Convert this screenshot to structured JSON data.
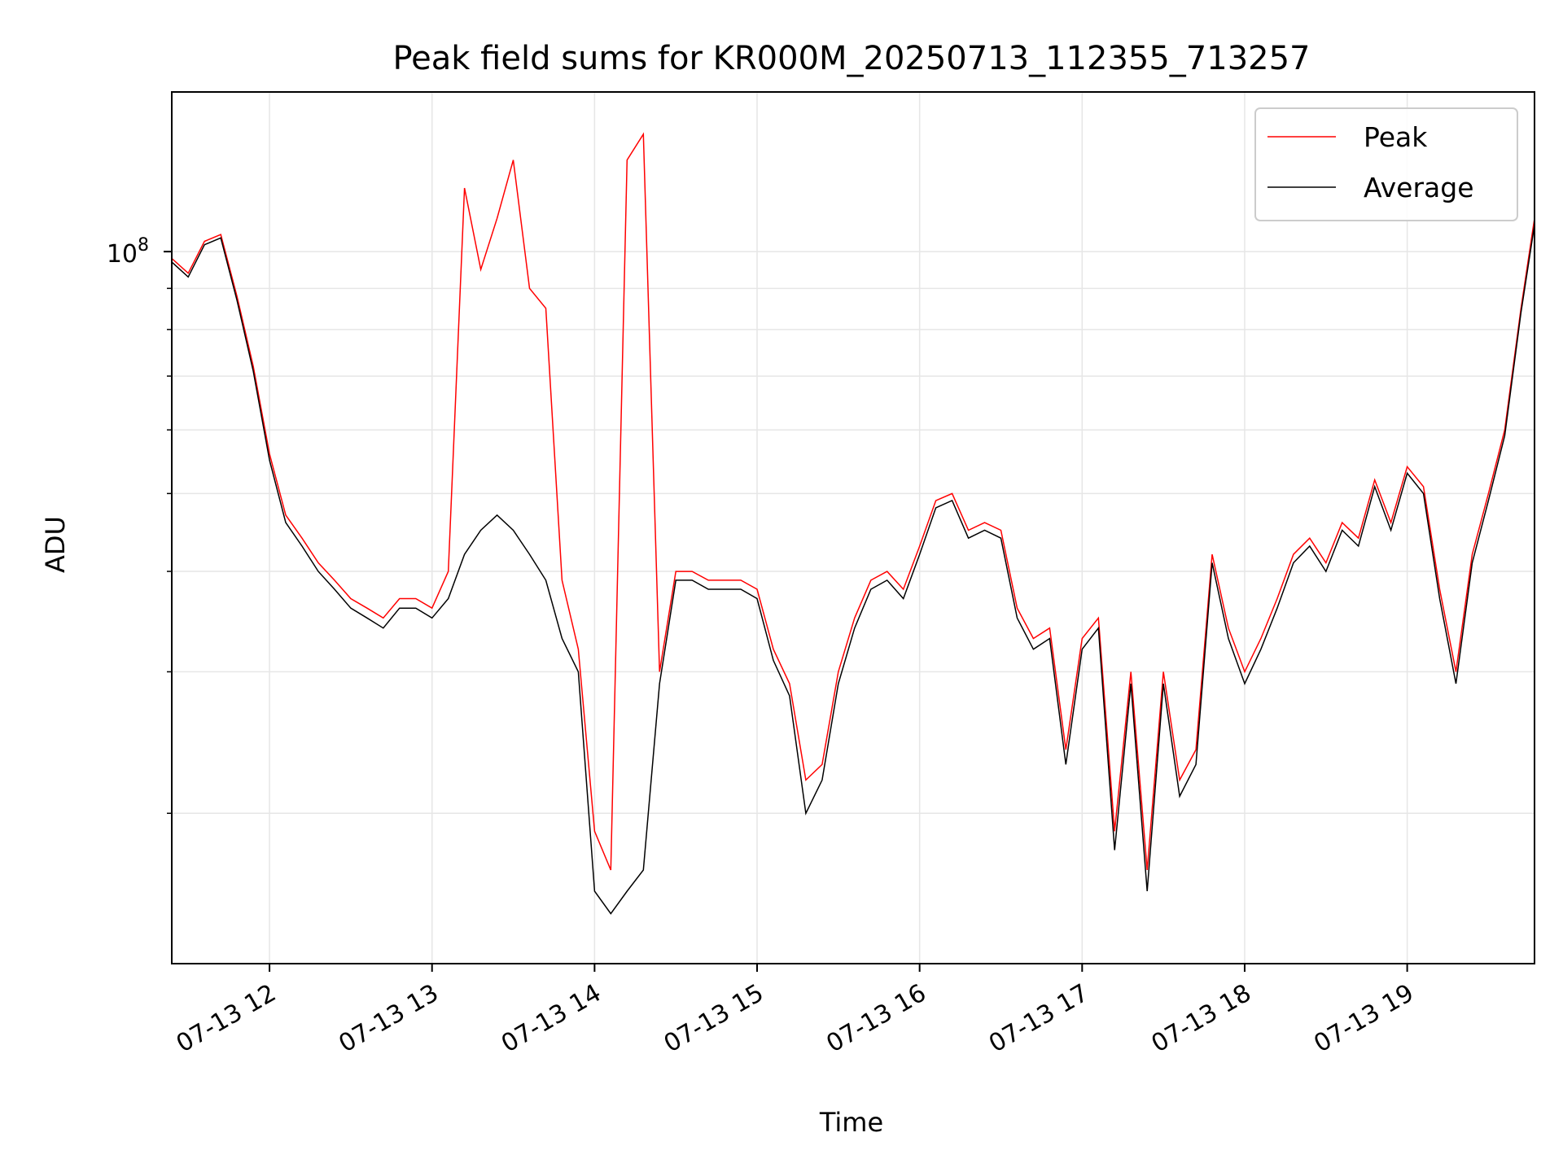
{
  "chart_data": {
    "type": "line",
    "title": "Peak field sums for KR000M_20250713_112355_713257",
    "xlabel": "Time",
    "ylabel": "ADU",
    "x_range": [
      "2025-07-13 11:23:55",
      "2025-07-13 19:47"
    ],
    "y_scale": "log",
    "y_major_tick": "10^8",
    "ylim": [
      13000000,
      158000000
    ],
    "grid": true,
    "legend_position": "upper right",
    "x_tick_labels": [
      "07-13 12",
      "07-13 13",
      "07-13 14",
      "07-13 15",
      "07-13 16",
      "07-13 17",
      "07-13 18",
      "07-13 19"
    ],
    "x_ticks": [
      "2025-07-13 12:00",
      "2025-07-13 13:00",
      "2025-07-13 14:00",
      "2025-07-13 15:00",
      "2025-07-13 16:00",
      "2025-07-13 17:00",
      "2025-07-13 18:00",
      "2025-07-13 19:00"
    ],
    "y_major_label": {
      "base": "10",
      "exp": "8"
    },
    "y_major_value": 100000000,
    "y_minor_ticks": [
      20000000,
      30000000,
      40000000,
      50000000,
      60000000,
      70000000,
      80000000,
      90000000
    ],
    "series": [
      {
        "name": "Peak",
        "color": "#ff0000",
        "x": [
          "2025-07-13 11:24",
          "2025-07-13 11:30",
          "2025-07-13 11:36",
          "2025-07-13 11:42",
          "2025-07-13 11:48",
          "2025-07-13 11:54",
          "2025-07-13 12:00",
          "2025-07-13 12:06",
          "2025-07-13 12:12",
          "2025-07-13 12:18",
          "2025-07-13 12:24",
          "2025-07-13 12:30",
          "2025-07-13 12:36",
          "2025-07-13 12:42",
          "2025-07-13 12:48",
          "2025-07-13 12:54",
          "2025-07-13 13:00",
          "2025-07-13 13:06",
          "2025-07-13 13:12",
          "2025-07-13 13:18",
          "2025-07-13 13:24",
          "2025-07-13 13:30",
          "2025-07-13 13:36",
          "2025-07-13 13:42",
          "2025-07-13 13:48",
          "2025-07-13 13:54",
          "2025-07-13 14:00",
          "2025-07-13 14:06",
          "2025-07-13 14:12",
          "2025-07-13 14:18",
          "2025-07-13 14:24",
          "2025-07-13 14:30",
          "2025-07-13 14:36",
          "2025-07-13 14:42",
          "2025-07-13 14:48",
          "2025-07-13 14:54",
          "2025-07-13 15:00",
          "2025-07-13 15:06",
          "2025-07-13 15:12",
          "2025-07-13 15:18",
          "2025-07-13 15:24",
          "2025-07-13 15:30",
          "2025-07-13 15:36",
          "2025-07-13 15:42",
          "2025-07-13 15:48",
          "2025-07-13 15:54",
          "2025-07-13 16:00",
          "2025-07-13 16:06",
          "2025-07-13 16:12",
          "2025-07-13 16:18",
          "2025-07-13 16:24",
          "2025-07-13 16:30",
          "2025-07-13 16:36",
          "2025-07-13 16:42",
          "2025-07-13 16:48",
          "2025-07-13 16:54",
          "2025-07-13 17:00",
          "2025-07-13 17:06",
          "2025-07-13 17:12",
          "2025-07-13 17:18",
          "2025-07-13 17:24",
          "2025-07-13 17:30",
          "2025-07-13 17:36",
          "2025-07-13 17:42",
          "2025-07-13 17:48",
          "2025-07-13 17:54",
          "2025-07-13 18:00",
          "2025-07-13 18:06",
          "2025-07-13 18:12",
          "2025-07-13 18:18",
          "2025-07-13 18:24",
          "2025-07-13 18:30",
          "2025-07-13 18:36",
          "2025-07-13 18:42",
          "2025-07-13 18:48",
          "2025-07-13 18:54",
          "2025-07-13 19:00",
          "2025-07-13 19:06",
          "2025-07-13 19:12",
          "2025-07-13 19:18",
          "2025-07-13 19:24",
          "2025-07-13 19:30",
          "2025-07-13 19:36",
          "2025-07-13 19:42",
          "2025-07-13 19:47"
        ],
        "values": [
          98000000,
          94000000,
          103000000,
          105000000,
          88000000,
          72000000,
          56000000,
          47000000,
          44000000,
          41000000,
          39000000,
          37000000,
          36000000,
          35000000,
          37000000,
          37000000,
          36000000,
          40000000,
          120000000,
          95000000,
          110000000,
          130000000,
          90000000,
          85000000,
          39000000,
          32000000,
          19000000,
          17000000,
          130000000,
          140000000,
          30000000,
          40000000,
          40000000,
          39000000,
          39000000,
          39000000,
          38000000,
          32000000,
          29000000,
          22000000,
          23000000,
          30000000,
          35000000,
          39000000,
          40000000,
          38000000,
          43000000,
          49000000,
          50000000,
          45000000,
          46000000,
          45000000,
          36000000,
          33000000,
          34000000,
          24000000,
          33000000,
          35000000,
          19000000,
          30000000,
          17000000,
          30000000,
          22000000,
          24000000,
          42000000,
          34000000,
          30000000,
          33000000,
          37000000,
          42000000,
          44000000,
          41000000,
          46000000,
          44000000,
          52000000,
          46000000,
          54000000,
          51000000,
          38000000,
          30000000,
          42000000,
          50000000,
          60000000,
          85000000,
          110000000
        ]
      },
      {
        "name": "Average",
        "color": "#000000",
        "x": [
          "2025-07-13 11:24",
          "2025-07-13 11:30",
          "2025-07-13 11:36",
          "2025-07-13 11:42",
          "2025-07-13 11:48",
          "2025-07-13 11:54",
          "2025-07-13 12:00",
          "2025-07-13 12:06",
          "2025-07-13 12:12",
          "2025-07-13 12:18",
          "2025-07-13 12:24",
          "2025-07-13 12:30",
          "2025-07-13 12:36",
          "2025-07-13 12:42",
          "2025-07-13 12:48",
          "2025-07-13 12:54",
          "2025-07-13 13:00",
          "2025-07-13 13:06",
          "2025-07-13 13:12",
          "2025-07-13 13:18",
          "2025-07-13 13:24",
          "2025-07-13 13:30",
          "2025-07-13 13:36",
          "2025-07-13 13:42",
          "2025-07-13 13:48",
          "2025-07-13 13:54",
          "2025-07-13 14:00",
          "2025-07-13 14:06",
          "2025-07-13 14:12",
          "2025-07-13 14:18",
          "2025-07-13 14:24",
          "2025-07-13 14:30",
          "2025-07-13 14:36",
          "2025-07-13 14:42",
          "2025-07-13 14:48",
          "2025-07-13 14:54",
          "2025-07-13 15:00",
          "2025-07-13 15:06",
          "2025-07-13 15:12",
          "2025-07-13 15:18",
          "2025-07-13 15:24",
          "2025-07-13 15:30",
          "2025-07-13 15:36",
          "2025-07-13 15:42",
          "2025-07-13 15:48",
          "2025-07-13 15:54",
          "2025-07-13 16:00",
          "2025-07-13 16:06",
          "2025-07-13 16:12",
          "2025-07-13 16:18",
          "2025-07-13 16:24",
          "2025-07-13 16:30",
          "2025-07-13 16:36",
          "2025-07-13 16:42",
          "2025-07-13 16:48",
          "2025-07-13 16:54",
          "2025-07-13 17:00",
          "2025-07-13 17:06",
          "2025-07-13 17:12",
          "2025-07-13 17:18",
          "2025-07-13 17:24",
          "2025-07-13 17:30",
          "2025-07-13 17:36",
          "2025-07-13 17:42",
          "2025-07-13 17:48",
          "2025-07-13 17:54",
          "2025-07-13 18:00",
          "2025-07-13 18:06",
          "2025-07-13 18:12",
          "2025-07-13 18:18",
          "2025-07-13 18:24",
          "2025-07-13 18:30",
          "2025-07-13 18:36",
          "2025-07-13 18:42",
          "2025-07-13 18:48",
          "2025-07-13 18:54",
          "2025-07-13 19:00",
          "2025-07-13 19:06",
          "2025-07-13 19:12",
          "2025-07-13 19:18",
          "2025-07-13 19:24",
          "2025-07-13 19:30",
          "2025-07-13 19:36",
          "2025-07-13 19:42",
          "2025-07-13 19:47"
        ],
        "values": [
          97000000,
          93000000,
          102000000,
          104000000,
          87000000,
          71000000,
          55000000,
          46000000,
          43000000,
          40000000,
          38000000,
          36000000,
          35000000,
          34000000,
          36000000,
          36000000,
          35000000,
          37000000,
          42000000,
          45000000,
          47000000,
          45000000,
          42000000,
          39000000,
          33000000,
          30000000,
          16000000,
          15000000,
          16000000,
          17000000,
          29000000,
          39000000,
          39000000,
          38000000,
          38000000,
          38000000,
          37000000,
          31000000,
          28000000,
          20000000,
          22000000,
          29000000,
          34000000,
          38000000,
          39000000,
          37000000,
          42000000,
          48000000,
          49000000,
          44000000,
          45000000,
          44000000,
          35000000,
          32000000,
          33000000,
          23000000,
          32000000,
          34000000,
          18000000,
          29000000,
          16000000,
          29000000,
          21000000,
          23000000,
          41000000,
          33000000,
          29000000,
          32000000,
          36000000,
          41000000,
          43000000,
          40000000,
          45000000,
          43000000,
          51000000,
          45000000,
          53000000,
          50000000,
          37000000,
          29000000,
          41000000,
          49000000,
          59000000,
          84000000,
          108000000
        ]
      }
    ]
  }
}
